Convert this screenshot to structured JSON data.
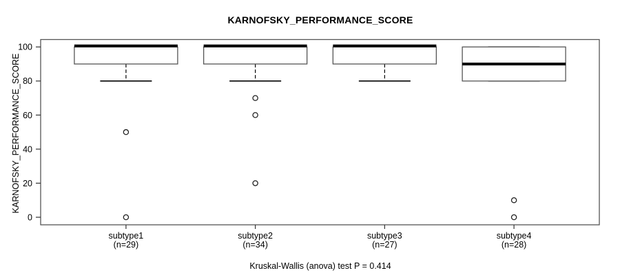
{
  "chart_data": {
    "type": "boxplot",
    "title": "KARNOFSKY_PERFORMANCE_SCORE",
    "ylabel": "KARNOFSKY_PERFORMANCE_SCORE",
    "xlabel": "",
    "caption": "Kruskal-Wallis (anova) test P = 0.414",
    "ylim": [
      0,
      100
    ],
    "yticks": [
      0,
      20,
      40,
      60,
      80,
      100
    ],
    "grid": false,
    "legend_position": "none",
    "categories": [
      {
        "label": "subtype1",
        "sublabel": "(n=29)"
      },
      {
        "label": "subtype2",
        "sublabel": "(n=34)"
      },
      {
        "label": "subtype3",
        "sublabel": "(n=27)"
      },
      {
        "label": "subtype4",
        "sublabel": "(n=28)"
      }
    ],
    "series": [
      {
        "name": "subtype1",
        "n": 29,
        "whisker_low": 80,
        "q1": 90,
        "median": 100,
        "q3": 100,
        "whisker_high": 100,
        "outliers": [
          50,
          0
        ]
      },
      {
        "name": "subtype2",
        "n": 34,
        "whisker_low": 80,
        "q1": 90,
        "median": 100,
        "q3": 100,
        "whisker_high": 100,
        "outliers": [
          70,
          60,
          20
        ]
      },
      {
        "name": "subtype3",
        "n": 27,
        "whisker_low": 80,
        "q1": 90,
        "median": 100,
        "q3": 100,
        "whisker_high": 100,
        "outliers": []
      },
      {
        "name": "subtype4",
        "n": 28,
        "whisker_low": 80,
        "q1": 80,
        "median": 90,
        "q3": 100,
        "whisker_high": 100,
        "outliers": [
          10,
          0
        ]
      }
    ],
    "colors": {
      "background": "#ffffff",
      "box_border": "#555555",
      "frame": "#555555",
      "line": "#000000",
      "text": "#000000"
    }
  }
}
